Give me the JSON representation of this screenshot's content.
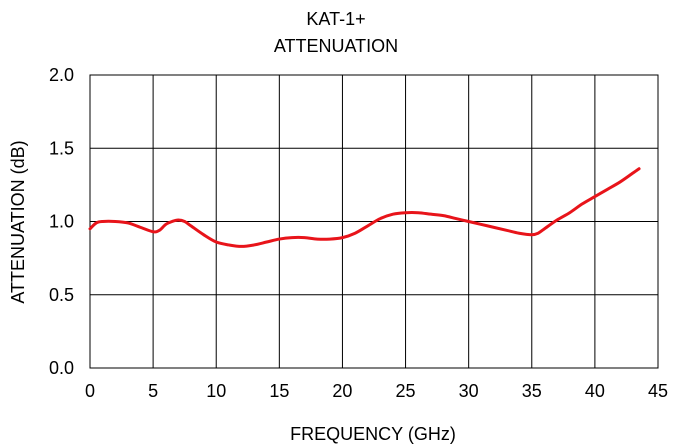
{
  "chart_data": {
    "type": "line",
    "title": "KAT-1+",
    "subtitle": "ATTENUATION",
    "xlabel": "FREQUENCY (GHz)",
    "ylabel": "ATTENUATION (dB)",
    "xlim": [
      0,
      45
    ],
    "ylim": [
      0,
      2.0
    ],
    "x_ticks": [
      "0",
      "5",
      "10",
      "15",
      "20",
      "25",
      "30",
      "35",
      "40",
      "45"
    ],
    "y_ticks": [
      "0.0",
      "0.5",
      "1.0",
      "1.5",
      "2.0"
    ],
    "grid": true,
    "series_color": "#e8141a",
    "series": [
      {
        "x": [
          0,
          0.5,
          1,
          2,
          3,
          4,
          5,
          5.5,
          6,
          6.5,
          7,
          7.5,
          8,
          9,
          10,
          11,
          12,
          13,
          14,
          15,
          16,
          17,
          18,
          19,
          20,
          21,
          22,
          23,
          24,
          25,
          26,
          27,
          28,
          29,
          30,
          31,
          32,
          33,
          34,
          35,
          35.5,
          36,
          37,
          38,
          39,
          40,
          41,
          42,
          43,
          43.5
        ],
        "y": [
          0.95,
          0.99,
          1.0,
          1.0,
          0.99,
          0.96,
          0.93,
          0.94,
          0.98,
          1.0,
          1.01,
          1.0,
          0.97,
          0.91,
          0.86,
          0.84,
          0.83,
          0.84,
          0.86,
          0.88,
          0.89,
          0.89,
          0.88,
          0.88,
          0.89,
          0.92,
          0.97,
          1.02,
          1.05,
          1.06,
          1.06,
          1.05,
          1.04,
          1.02,
          1.0,
          0.98,
          0.96,
          0.94,
          0.92,
          0.91,
          0.92,
          0.95,
          1.01,
          1.06,
          1.12,
          1.17,
          1.22,
          1.27,
          1.33,
          1.36
        ]
      }
    ]
  }
}
